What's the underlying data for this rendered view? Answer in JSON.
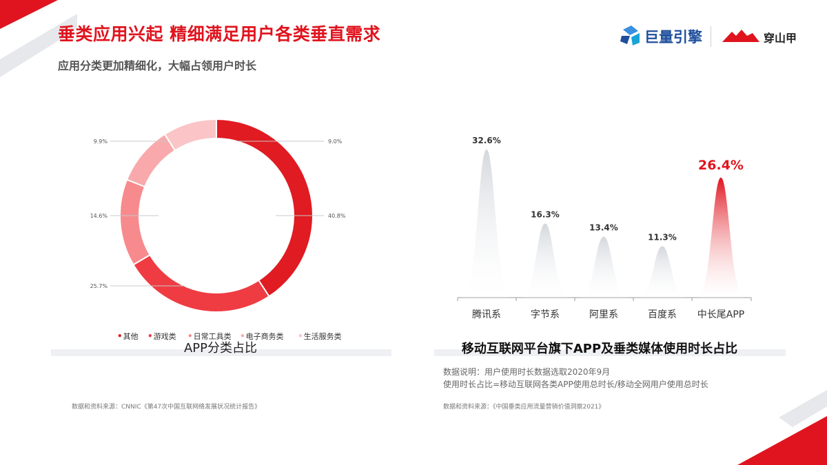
{
  "header": {
    "title": "垂类应用兴起  精细满足用户各类垂直需求",
    "subtitle": "应用分类更加精细化，大幅占领用户时长",
    "brand_a": "巨量引擎",
    "brand_b": "穿山甲"
  },
  "colors": {
    "accent": "#e0141e",
    "accent_dark": "#c40f18",
    "gray_peak": "#d9dde1"
  },
  "chart_data": [
    {
      "type": "pie",
      "style": "donut",
      "title": "APP分类占比",
      "labels": [
        "其他",
        "游戏类",
        "日常工具类",
        "电子商务类",
        "生活服务类"
      ],
      "values": [
        40.8,
        25.7,
        14.6,
        9.9,
        9.0
      ],
      "value_labels": [
        "40.8%",
        "25.7%",
        "14.6%",
        "9.9%",
        "9.0%"
      ],
      "colors": [
        "#e01b22",
        "#ef3c42",
        "#f78a8d",
        "#f9a9ab",
        "#fbc4c6"
      ],
      "legend_position": "bottom"
    },
    {
      "type": "area",
      "style": "peaks",
      "title": "移动互联网平台旗下APP及垂类媒体使用时长占比",
      "categories": [
        "腾讯系",
        "字节系",
        "阿里系",
        "百度系",
        "中长尾APP"
      ],
      "values": [
        32.6,
        16.3,
        13.4,
        11.3,
        26.4
      ],
      "value_labels": [
        "32.6%",
        "16.3%",
        "13.4%",
        "11.3%",
        "26.4%"
      ],
      "highlight": "中长尾APP",
      "notes": [
        "数据说明：用户使用时长数据选取2020年9月",
        "使用时长占比=移动互联网各类APP使用总时长/移动全网用户使用总时长"
      ]
    }
  ],
  "sources": {
    "left": "数据和资料来源：CNNIC《第47次中国互联网络发展状况统计报告》",
    "right": "数据和资料来源：《中国垂类应用流量营销价值洞察2021》"
  }
}
